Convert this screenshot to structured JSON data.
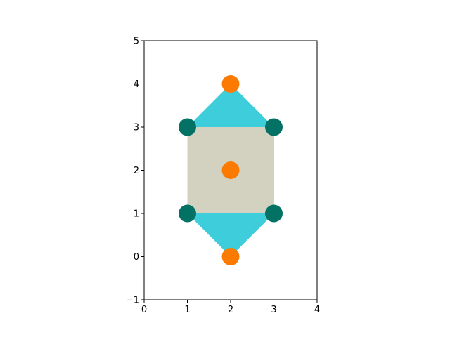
{
  "chart_data": {
    "type": "scatter",
    "title": "",
    "xlabel": "",
    "ylabel": "",
    "xlim": [
      0,
      4
    ],
    "ylim": [
      -1,
      5
    ],
    "xticks": [
      0,
      1,
      2,
      3,
      4
    ],
    "yticks": [
      -1,
      0,
      1,
      2,
      3,
      4,
      5
    ],
    "xtick_labels": [
      "0",
      "1",
      "2",
      "3",
      "4"
    ],
    "ytick_labels": [
      "−1",
      "0",
      "1",
      "2",
      "3",
      "4",
      "5"
    ],
    "grid": false,
    "polygons": [
      {
        "name": "",
        "color": "#3ecdda",
        "points": [
          [
            1,
            3
          ],
          [
            2,
            4
          ],
          [
            3,
            3
          ]
        ]
      },
      {
        "name": "",
        "color": "#3ecdda",
        "points": [
          [
            1,
            1
          ],
          [
            2,
            0
          ],
          [
            3,
            1
          ]
        ]
      },
      {
        "name": "",
        "color": "#d3d1c0",
        "points": [
          [
            1,
            1
          ],
          [
            3,
            1
          ],
          [
            3,
            3
          ],
          [
            1,
            3
          ]
        ]
      }
    ],
    "series": [
      {
        "name": "",
        "color": "#037164",
        "x": [
          1,
          3,
          1,
          3
        ],
        "y": [
          3,
          3,
          1,
          1
        ]
      },
      {
        "name": "",
        "color": "#fd7a00",
        "x": [
          2,
          2,
          2
        ],
        "y": [
          4,
          2,
          0
        ]
      }
    ]
  }
}
